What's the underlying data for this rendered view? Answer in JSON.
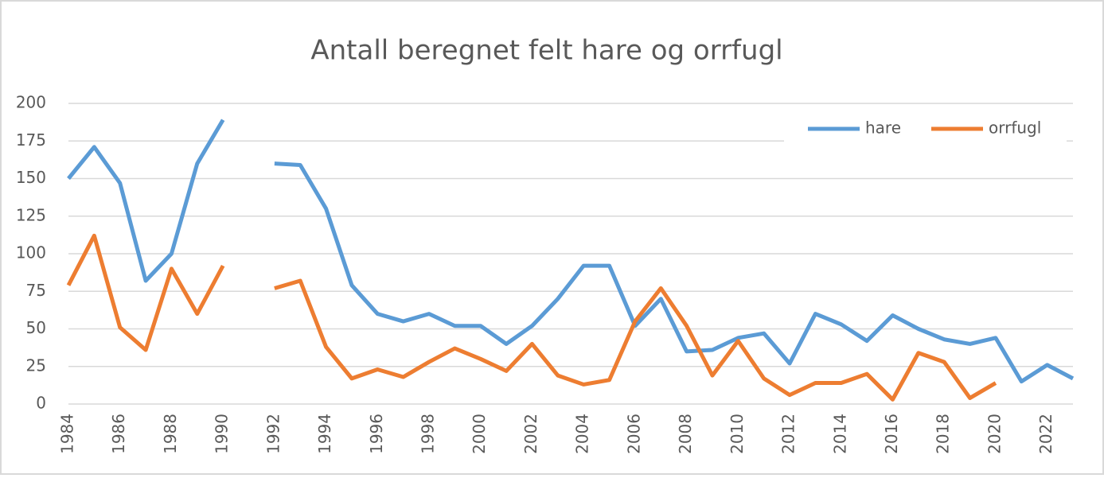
{
  "chart_data": {
    "type": "line",
    "title": "Antall beregnet felt hare og orrfugl",
    "categories": [
      "1984",
      null,
      "1986",
      null,
      "1988",
      null,
      "1990",
      null,
      "1992",
      null,
      "1994",
      null,
      "1996",
      null,
      "1998",
      null,
      "2000",
      null,
      "2002",
      null,
      "2004",
      null,
      "2006",
      null,
      "2008",
      null,
      "2010",
      null,
      "2012",
      null,
      "2014",
      null,
      "2016",
      null,
      "2018",
      null,
      "2020",
      null,
      "2022",
      null
    ],
    "series": [
      {
        "name": "hare",
        "color": "#5b9bd5",
        "values": [
          150,
          171,
          147,
          82,
          100,
          160,
          189,
          null,
          160,
          159,
          130,
          79,
          60,
          55,
          60,
          52,
          52,
          40,
          52,
          70,
          92,
          92,
          52,
          70,
          35,
          36,
          44,
          47,
          27,
          60,
          53,
          42,
          59,
          50,
          43,
          40,
          44,
          15,
          26,
          17
        ]
      },
      {
        "name": "orrfugl",
        "color": "#ed7d31",
        "values": [
          79,
          112,
          51,
          36,
          90,
          60,
          92,
          null,
          77,
          82,
          38,
          17,
          23,
          18,
          28,
          37,
          30,
          22,
          40,
          19,
          13,
          16,
          55,
          77,
          52,
          19,
          42,
          17,
          6,
          14,
          14,
          20,
          3,
          34,
          28,
          4,
          14,
          null,
          null,
          null
        ]
      }
    ],
    "ylim": [
      0,
      200
    ],
    "yticks": [
      0,
      25,
      50,
      75,
      100,
      125,
      150,
      175,
      200
    ],
    "grid": true,
    "legend": "top-right"
  }
}
